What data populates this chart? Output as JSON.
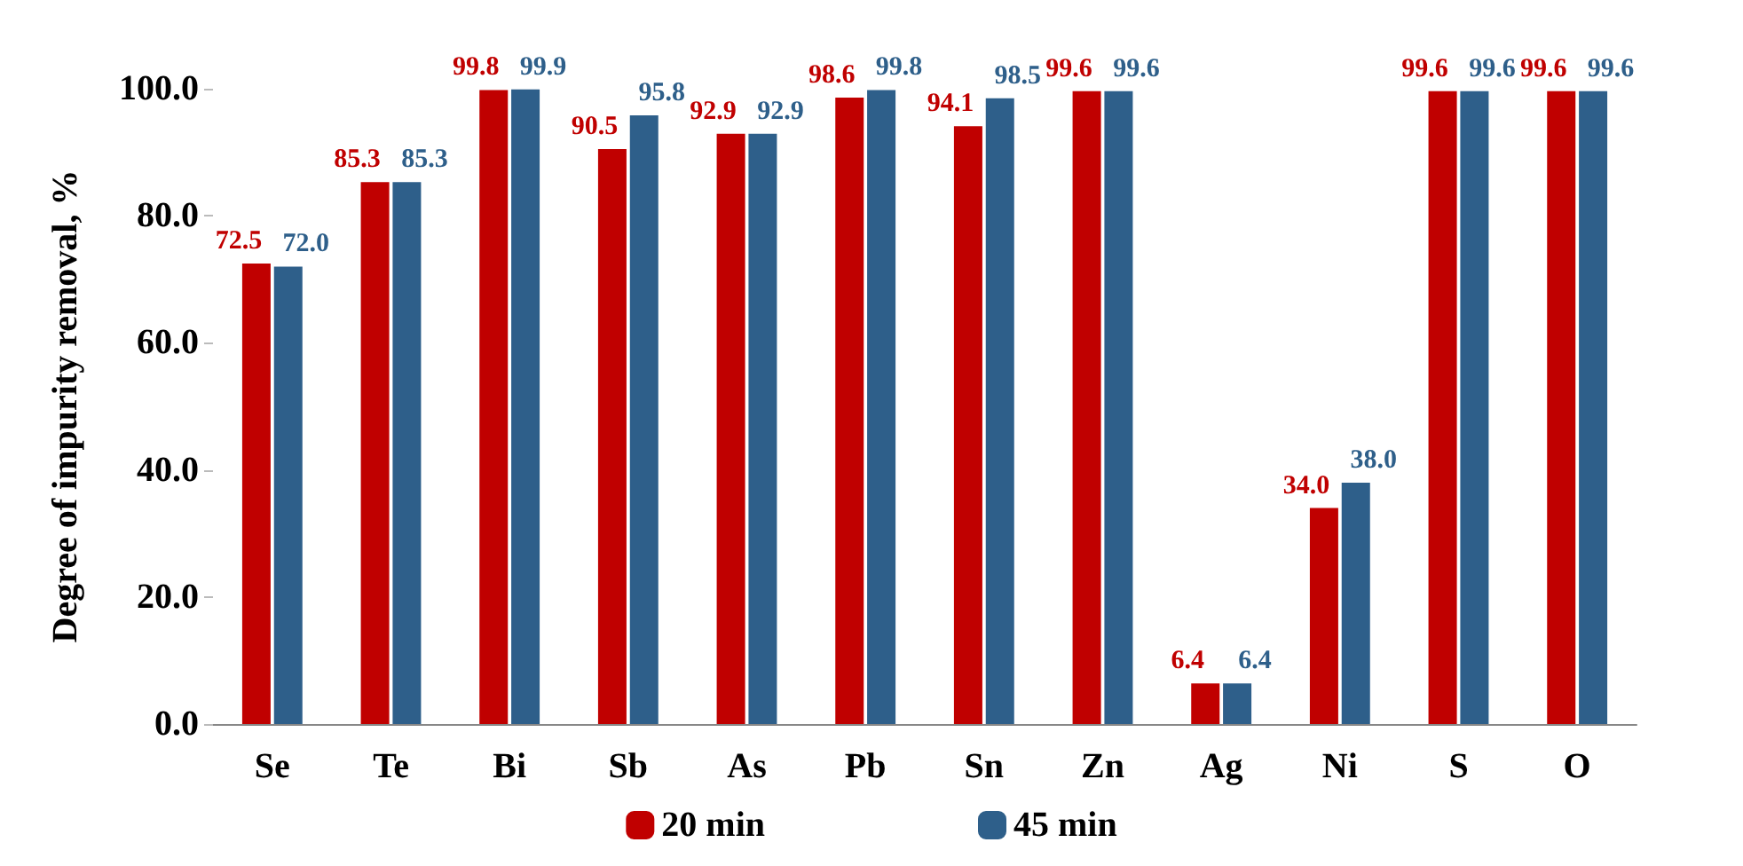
{
  "chart_data": {
    "type": "bar",
    "ylabel": "Degree of impurity removal, %",
    "categories": [
      "Se",
      "Te",
      "Bi",
      "Sb",
      "As",
      "Pb",
      "Sn",
      "Zn",
      "Ag",
      "Ni",
      "S",
      "O"
    ],
    "series": [
      {
        "name": "20 min",
        "color": "#c00000",
        "values": [
          72.5,
          85.3,
          99.8,
          90.5,
          92.9,
          98.6,
          94.1,
          99.6,
          6.4,
          34.0,
          99.6,
          99.6
        ],
        "value_labels": [
          "72.5",
          "85.3",
          "99.8",
          "90.5",
          "92.9",
          "98.6",
          "94.1",
          "99.6",
          "6.4",
          "34.0",
          "99.6",
          "99.6"
        ]
      },
      {
        "name": "45 min",
        "color": "#2e5f8a",
        "values": [
          72.0,
          85.3,
          99.9,
          95.8,
          92.9,
          99.8,
          98.5,
          99.6,
          6.4,
          38.0,
          99.6,
          99.6
        ],
        "value_labels": [
          "72.0",
          "85.3",
          "99.9",
          "95.8",
          "92.9",
          "99.8",
          "98.5",
          "99.6",
          "6.4",
          "38.0",
          "99.6",
          "99.6"
        ]
      }
    ],
    "ylim": [
      0,
      100
    ],
    "yticks": [
      {
        "value": 0,
        "label": "0.0"
      },
      {
        "value": 20,
        "label": "20.0"
      },
      {
        "value": 40,
        "label": "40.0"
      },
      {
        "value": 60,
        "label": "60.0"
      },
      {
        "value": 80,
        "label": "80.0"
      },
      {
        "value": 100,
        "label": "100.0"
      }
    ],
    "grid": false,
    "legend": "bottom"
  }
}
